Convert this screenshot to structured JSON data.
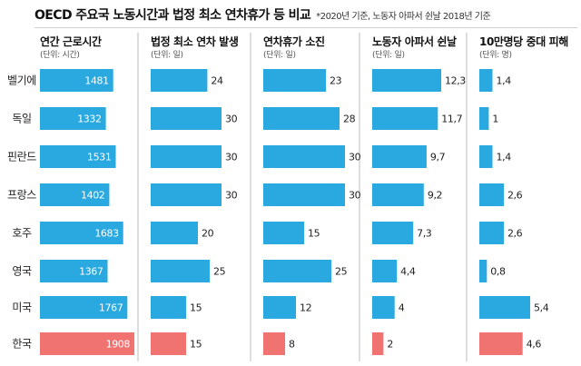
{
  "title": "OECD 주요국 노동시간과 법정 최소 연차휴가 등 비교",
  "note": "*2020년 기준, 노동자 아파서 쉰날 2018년 기준",
  "colors": {
    "bar": "#29a9e0",
    "highlight": "#f07372",
    "divider": "#bdbdbd"
  },
  "chart_data": {
    "type": "bar",
    "orientation": "horizontal",
    "categories": [
      "벨기에",
      "독일",
      "핀란드",
      "프랑스",
      "호주",
      "영국",
      "미국",
      "한국"
    ],
    "highlight_category": "한국",
    "panels": [
      {
        "title": "연간 근로시간",
        "unit": "(단위: 시간)",
        "values": [
          1481,
          1332,
          1531,
          1402,
          1683,
          1367,
          1767,
          1908
        ],
        "labels": [
          "1481",
          "1332",
          "1531",
          "1402",
          "1683",
          "1367",
          "1767",
          "1908"
        ],
        "xlim": [
          0,
          1908
        ],
        "label_inside": true
      },
      {
        "title": "법정 최소 연차 발생",
        "unit": "(단위: 일)",
        "values": [
          24,
          30,
          30,
          30,
          20,
          25,
          15,
          15
        ],
        "labels": [
          "24",
          "30",
          "30",
          "30",
          "20",
          "25",
          "15",
          "15"
        ],
        "xlim": [
          0,
          30
        ],
        "label_inside": false
      },
      {
        "title": "연차휴가 소진",
        "unit": "(단위: 일)",
        "values": [
          23,
          28,
          30,
          30,
          15,
          25,
          12,
          8
        ],
        "labels": [
          "23",
          "28",
          "30",
          "30",
          "15",
          "25",
          "12",
          "8"
        ],
        "xlim": [
          0,
          30
        ],
        "label_inside": false
      },
      {
        "title": "노동자 아파서 쉰날",
        "unit": "(단위: 일)",
        "values": [
          12.3,
          11.7,
          9.7,
          9.2,
          7.3,
          4.4,
          4,
          2
        ],
        "labels": [
          "12,3",
          "11,7",
          "9,7",
          "9,2",
          "7,3",
          "4,4",
          "4",
          "2"
        ],
        "xlim": [
          0,
          12.3
        ],
        "label_inside": false
      },
      {
        "title": "10만명당 중대 피해",
        "unit": "(단위: 명)",
        "values": [
          1.4,
          1,
          1.4,
          2.6,
          2.6,
          0.8,
          5.4,
          4.6
        ],
        "labels": [
          "1,4",
          "1",
          "1,4",
          "2,6",
          "2,6",
          "0,8",
          "5,4",
          "4,6"
        ],
        "xlim": [
          0,
          5.4
        ],
        "label_inside": false
      }
    ]
  }
}
